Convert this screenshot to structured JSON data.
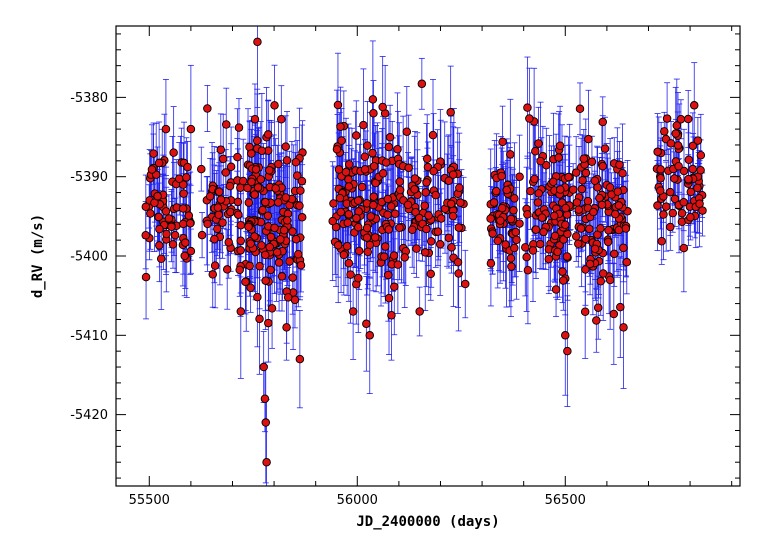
{
  "chart_data": {
    "type": "scatter",
    "xlabel": "JD_2400000 (days)",
    "ylabel": "d_RV (m/s)",
    "xlim": [
      55420,
      56920
    ],
    "ylim": [
      -5429,
      -5371
    ],
    "x_ticks": [
      55500,
      56000,
      56500
    ],
    "y_ticks": [
      -5420,
      -5410,
      -5400,
      -5390,
      -5380
    ],
    "x_tick_labels": [
      "55500",
      "56000",
      "56500"
    ],
    "y_tick_labels": [
      "-5420",
      "-5410",
      "-5400",
      "-5390",
      "-5380"
    ],
    "grid": false,
    "legend": "none",
    "marker": "circle",
    "colors": {
      "marker_fill": "#dd1111",
      "marker_edge": "#000000",
      "error_bar": "#2222ee"
    },
    "series": [
      {
        "error_bars": true,
        "seasons": [
          {
            "x_range": [
              55490,
              55600
            ],
            "n": 70,
            "mean": -5393,
            "sd": 3.5,
            "err": 4.5
          },
          {
            "x_range": [
              55625,
              55700
            ],
            "n": 45,
            "mean": -5393,
            "sd": 4.0,
            "err": 4.5
          },
          {
            "x_range": [
              55710,
              55870
            ],
            "n": 160,
            "mean": -5395,
            "sd": 5.0,
            "err": 5.0
          },
          {
            "x_range": [
              55940,
              56100
            ],
            "n": 140,
            "mean": -5393,
            "sd": 5.0,
            "err": 5.0
          },
          {
            "x_range": [
              56100,
              56260
            ],
            "n": 95,
            "mean": -5394,
            "sd": 4.5,
            "err": 5.0
          },
          {
            "x_range": [
              56320,
              56470
            ],
            "n": 95,
            "mean": -5394,
            "sd": 4.0,
            "err": 5.0
          },
          {
            "x_range": [
              56470,
              56650
            ],
            "n": 160,
            "mean": -5395,
            "sd": 4.5,
            "err": 4.5
          },
          {
            "x_range": [
              56720,
              56830
            ],
            "n": 70,
            "mean": -5390,
            "sd": 3.5,
            "err": 4.0
          }
        ],
        "points": [
          {
            "x": 55760,
            "y": -5373
          },
          {
            "x": 55775,
            "y": -5414
          },
          {
            "x": 55778,
            "y": -5418
          },
          {
            "x": 55780,
            "y": -5421
          },
          {
            "x": 55782,
            "y": -5426
          },
          {
            "x": 55720,
            "y": -5407
          },
          {
            "x": 55830,
            "y": -5409
          },
          {
            "x": 55862,
            "y": -5413
          },
          {
            "x": 55990,
            "y": -5407
          },
          {
            "x": 56030,
            "y": -5410
          },
          {
            "x": 56150,
            "y": -5407
          },
          {
            "x": 56500,
            "y": -5410
          },
          {
            "x": 56505,
            "y": -5412
          },
          {
            "x": 56640,
            "y": -5409
          },
          {
            "x": 56810,
            "y": -5381
          },
          {
            "x": 56785,
            "y": -5399
          },
          {
            "x": 55540,
            "y": -5384
          },
          {
            "x": 55600,
            "y": -5384
          }
        ]
      }
    ]
  }
}
